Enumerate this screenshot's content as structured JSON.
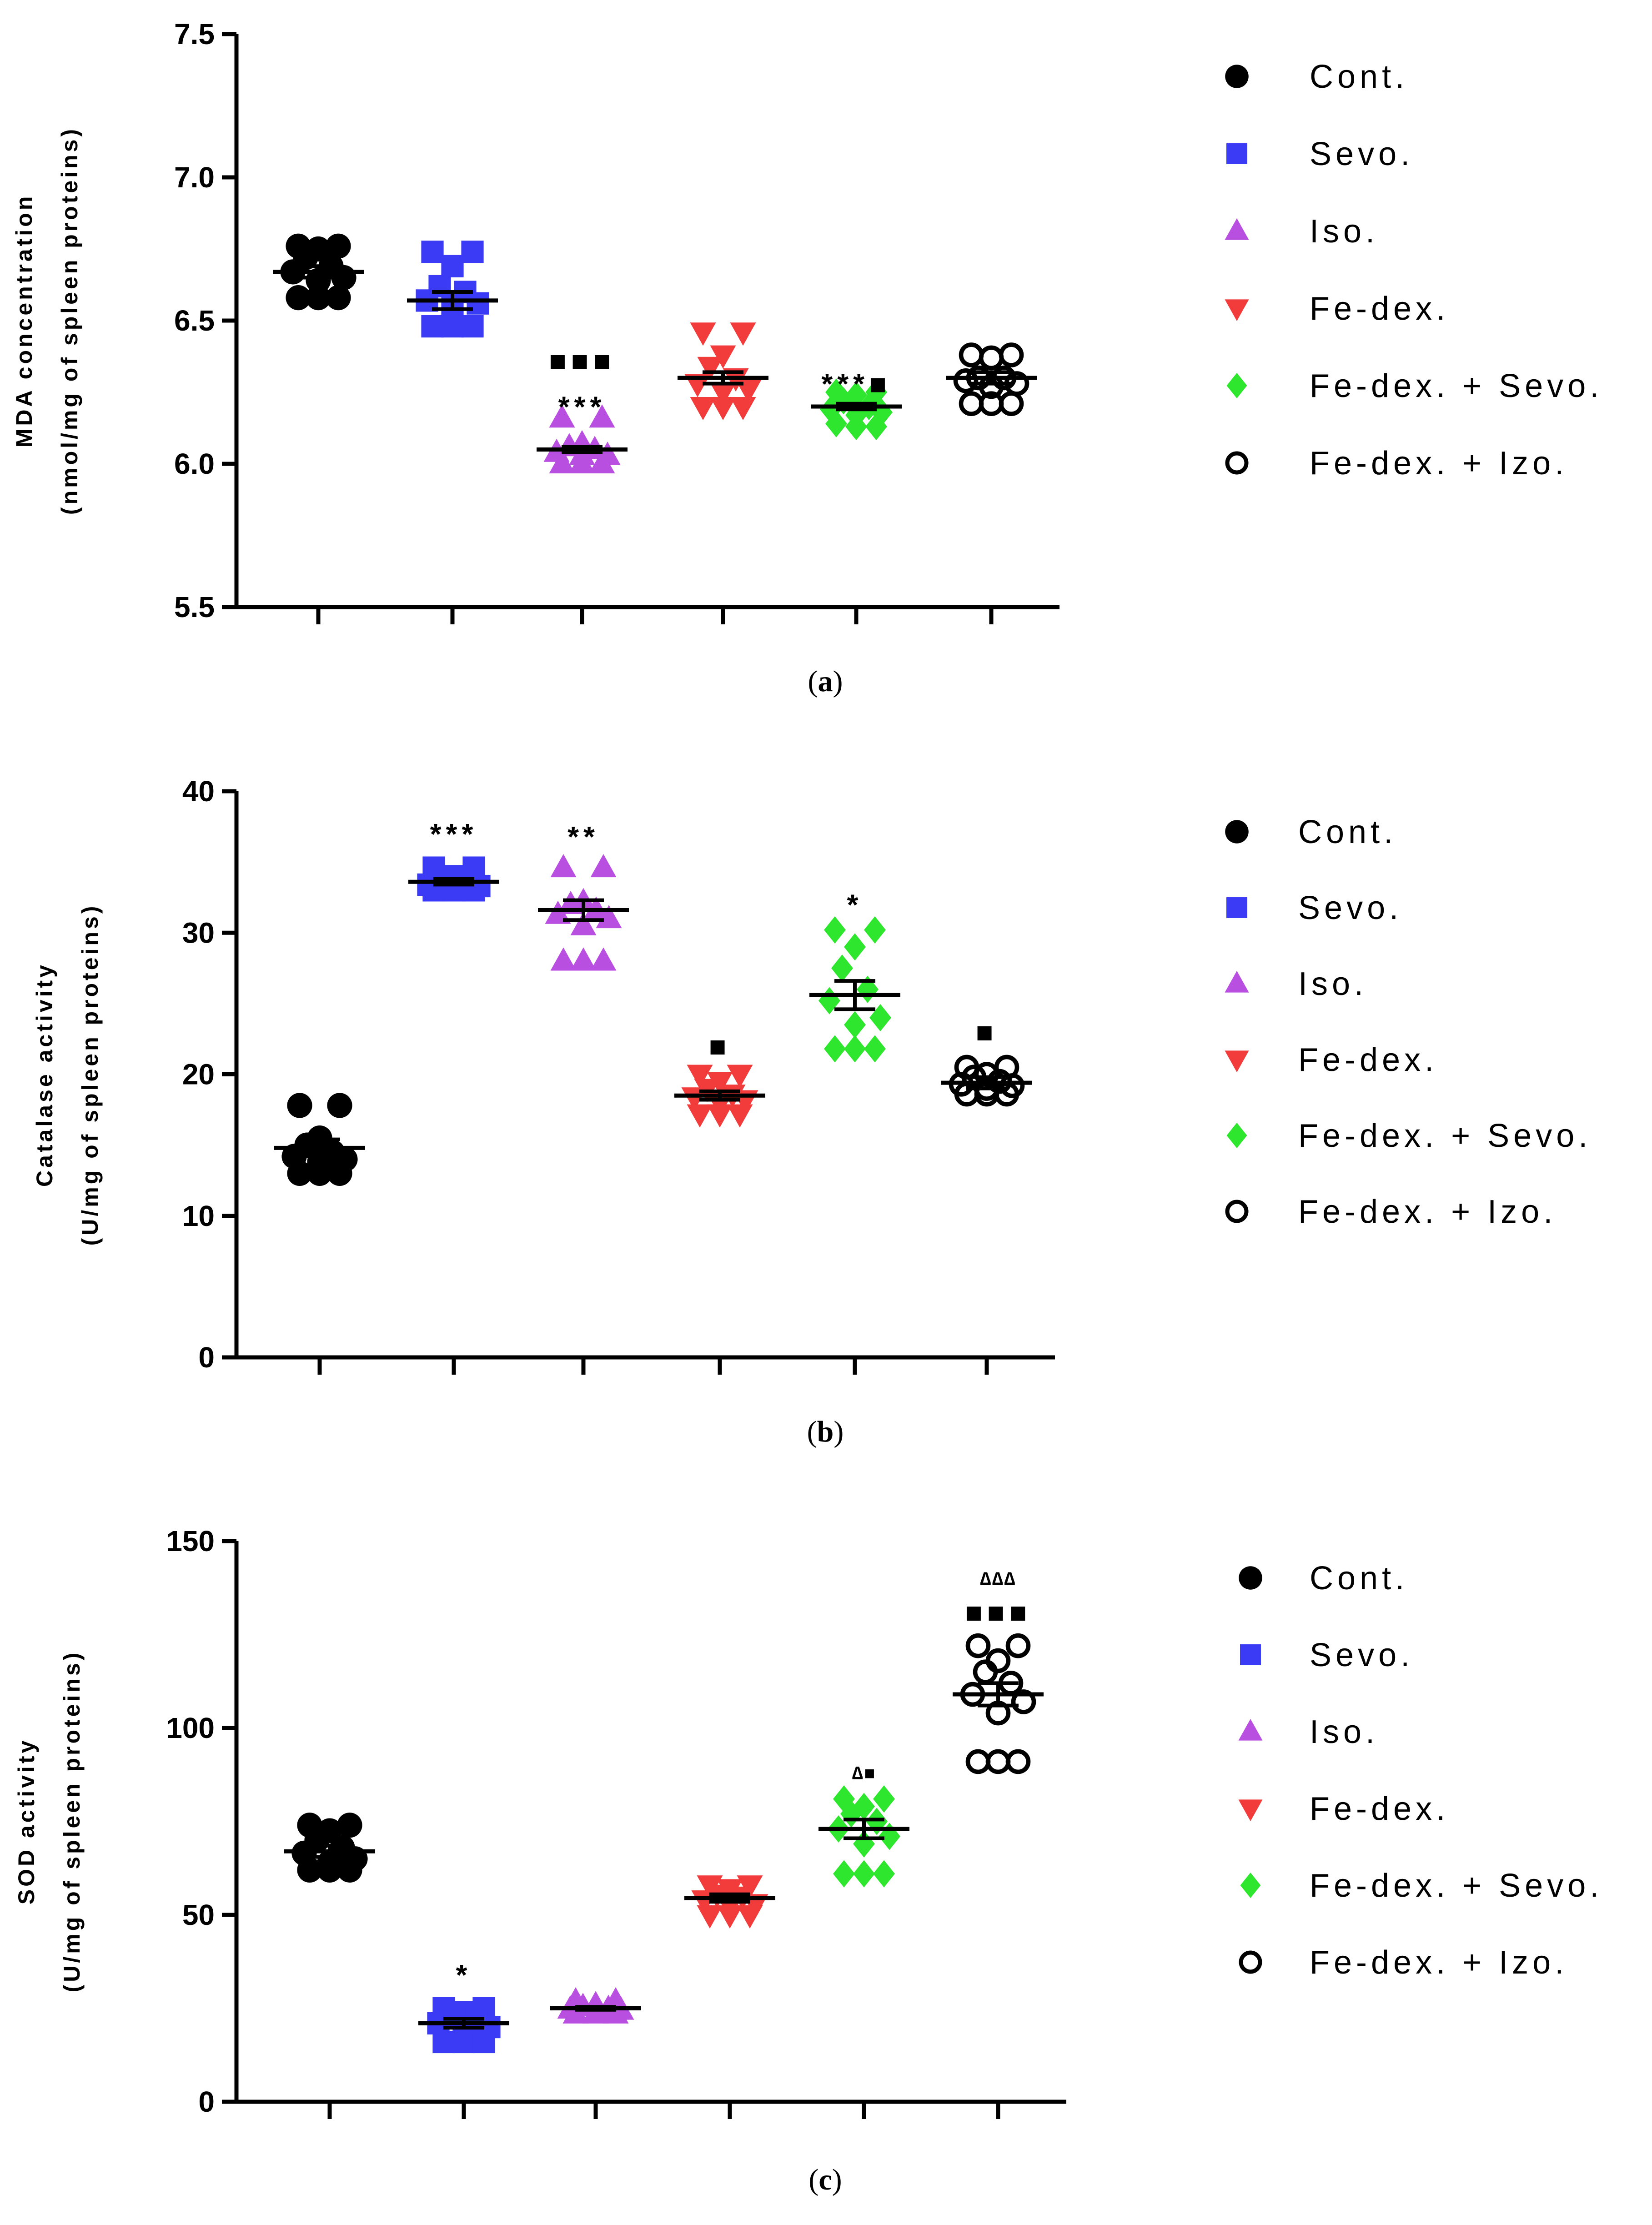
{
  "chart_data": [
    {
      "type": "scatter",
      "panel": "a",
      "caption_letter": "a",
      "ylabel_line1": "MDA concentration",
      "ylabel_line2": "(nmol/mg of spleen proteins)",
      "ylim": [
        5.5,
        7.5
      ],
      "yticks": [
        "5.5",
        "6.0",
        "6.5",
        "7.0",
        "7.5"
      ],
      "groups": [
        {
          "name": "Cont.",
          "marker": "circle",
          "color": "#000000",
          "mean": 6.67,
          "sem": 0.02,
          "points": [
            6.76,
            6.76,
            6.75,
            6.72,
            6.69,
            6.67,
            6.65,
            6.64,
            6.58,
            6.58,
            6.58
          ],
          "annotations": []
        },
        {
          "name": "Sevo.",
          "marker": "square",
          "color": "#3b3bf5",
          "mean": 6.57,
          "sem": 0.03,
          "points": [
            6.74,
            6.74,
            6.69,
            6.62,
            6.6,
            6.57,
            6.56,
            6.55,
            6.48,
            6.48,
            6.48
          ],
          "annotations": []
        },
        {
          "name": "Iso.",
          "marker": "triangle",
          "color": "#b84fe0",
          "mean": 6.05,
          "sem": 0.01,
          "points": [
            6.16,
            6.16,
            6.07,
            6.06,
            6.05,
            6.04,
            6.03,
            6.03,
            6.0,
            6.0,
            6.0
          ],
          "annotations": [
            {
              "text": "***",
              "value": 6.2
            },
            {
              "text": "■■■",
              "value": 6.36
            }
          ]
        },
        {
          "name": "Fe-dex.",
          "marker": "triangle-down",
          "color": "#f23b3b",
          "mean": 6.3,
          "sem": 0.02,
          "points": [
            6.46,
            6.46,
            6.38,
            6.34,
            6.3,
            6.28,
            6.26,
            6.25,
            6.2,
            6.2,
            6.2
          ],
          "annotations": []
        },
        {
          "name": "Fe-dex. + Sevo.",
          "marker": "diamond",
          "color": "#2ee62e",
          "mean": 6.2,
          "sem": 0.01,
          "points": [
            6.25,
            6.25,
            6.24,
            6.22,
            6.2,
            6.19,
            6.18,
            6.17,
            6.14,
            6.13,
            6.13
          ],
          "annotations": [
            {
              "text": "***■",
              "value": 6.28
            }
          ]
        },
        {
          "name": "Fe-dex. + Izo.",
          "marker": "circle-open",
          "color": "#000000",
          "mean": 6.3,
          "sem": 0.02,
          "points": [
            6.38,
            6.38,
            6.37,
            6.3,
            6.3,
            6.29,
            6.28,
            6.27,
            6.21,
            6.21,
            6.21
          ],
          "annotations": []
        }
      ]
    },
    {
      "type": "scatter",
      "panel": "b",
      "caption_letter": "b",
      "ylabel_line1": "Catalase activity",
      "ylabel_line2": "(U/mg of spleen proteins)",
      "ylim": [
        0,
        40
      ],
      "yticks": [
        "0",
        "10",
        "20",
        "30",
        "40"
      ],
      "groups": [
        {
          "name": "Cont.",
          "marker": "circle",
          "color": "#000000",
          "mean": 14.8,
          "sem": 0.6,
          "points": [
            17.8,
            17.8,
            15.5,
            15.0,
            14.5,
            14.2,
            14.0,
            13.8,
            13.0,
            13.0,
            13.0
          ],
          "annotations": []
        },
        {
          "name": "Sevo.",
          "marker": "square",
          "color": "#3b3bf5",
          "mean": 33.6,
          "sem": 0.2,
          "points": [
            34.6,
            34.6,
            34.0,
            33.8,
            33.6,
            33.4,
            33.3,
            33.2,
            33.0,
            33.0,
            33.0
          ],
          "annotations": [
            {
              "text": "***",
              "value": 37.0
            }
          ]
        },
        {
          "name": "Iso.",
          "marker": "triangle",
          "color": "#b84fe0",
          "mean": 31.6,
          "sem": 0.7,
          "points": [
            34.6,
            34.6,
            32.2,
            32.0,
            31.6,
            31.3,
            31.0,
            30.5,
            28.0,
            28.0,
            28.0
          ],
          "annotations": [
            {
              "text": "**",
              "value": 36.8
            }
          ]
        },
        {
          "name": "Fe-dex.",
          "marker": "triangle-down",
          "color": "#f23b3b",
          "mean": 18.5,
          "sem": 0.3,
          "points": [
            20.0,
            20.0,
            19.5,
            19.0,
            18.6,
            18.4,
            18.2,
            18.0,
            17.2,
            17.2,
            17.2
          ],
          "annotations": [
            {
              "text": "■",
              "value": 22.0
            }
          ]
        },
        {
          "name": "Fe-dex. + Sevo.",
          "marker": "diamond",
          "color": "#2ee62e",
          "mean": 25.6,
          "sem": 1.0,
          "points": [
            30.2,
            30.2,
            29.0,
            27.5,
            26.0,
            25.2,
            24.0,
            23.5,
            21.8,
            21.8,
            21.8
          ],
          "annotations": [
            {
              "text": "*",
              "value": 32.0
            }
          ]
        },
        {
          "name": "Fe-dex. + Izo.",
          "marker": "circle-open",
          "color": "#000000",
          "mean": 19.4,
          "sem": 0.4,
          "points": [
            20.5,
            20.5,
            20.0,
            19.8,
            19.5,
            19.3,
            19.2,
            19.0,
            18.6,
            18.6,
            18.6
          ],
          "annotations": [
            {
              "text": "■",
              "value": 23.0
            }
          ]
        }
      ]
    },
    {
      "type": "scatter",
      "panel": "c",
      "caption_letter": "c",
      "ylabel_line1": "SOD activity",
      "ylabel_line2": "(U/mg of spleen proteins)",
      "ylim": [
        0,
        150
      ],
      "yticks": [
        "0",
        "50",
        "100",
        "150"
      ],
      "groups": [
        {
          "name": "Cont.",
          "marker": "circle",
          "color": "#000000",
          "mean": 67.0,
          "sem": 1.5,
          "points": [
            74.0,
            74.0,
            72.5,
            70.0,
            68.0,
            66.5,
            65.0,
            64.0,
            62.0,
            62.0,
            62.0
          ],
          "annotations": []
        },
        {
          "name": "Sevo.",
          "marker": "square",
          "color": "#3b3bf5",
          "mean": 21.0,
          "sem": 1.2,
          "points": [
            25.0,
            25.0,
            24.0,
            22.5,
            21.5,
            21.0,
            20.0,
            19.0,
            16.0,
            16.0,
            16.0
          ],
          "annotations": [
            {
              "text": "*",
              "value": 34.0
            }
          ]
        },
        {
          "name": "Iso.",
          "marker": "triangle",
          "color": "#b84fe0",
          "mean": 25.0,
          "sem": 0.4,
          "points": [
            27.0,
            27.0,
            26.0,
            25.5,
            25.0,
            24.8,
            24.5,
            24.0,
            23.5,
            23.5,
            23.5
          ],
          "annotations": []
        },
        {
          "name": "Fe-dex.",
          "marker": "triangle-down",
          "color": "#f23b3b",
          "mean": 54.5,
          "sem": 1.0,
          "points": [
            58.0,
            58.0,
            57.0,
            55.5,
            55.0,
            54.0,
            53.0,
            52.5,
            50.0,
            50.0,
            50.0
          ],
          "annotations": []
        },
        {
          "name": "Fe-dex. + Sevo.",
          "marker": "diamond",
          "color": "#2ee62e",
          "mean": 73.0,
          "sem": 2.5,
          "points": [
            81.0,
            81.0,
            79.0,
            77.0,
            75.0,
            73.0,
            71.0,
            69.0,
            61.0,
            61.0,
            61.0
          ],
          "annotations": [
            {
              "text": "∆■",
              "value": 88.0
            }
          ]
        },
        {
          "name": "Fe-dex. + Izo.",
          "marker": "circle-open",
          "color": "#000000",
          "mean": 109.0,
          "sem": 3.0,
          "points": [
            122.0,
            122.0,
            118.0,
            115.0,
            112.0,
            109.0,
            107.0,
            104.0,
            91.0,
            91.0,
            91.0
          ],
          "annotations": [
            {
              "text": "∆∆∆",
              "value": 140.0
            },
            {
              "text": "■■■",
              "value": 131.0
            }
          ]
        }
      ]
    }
  ]
}
